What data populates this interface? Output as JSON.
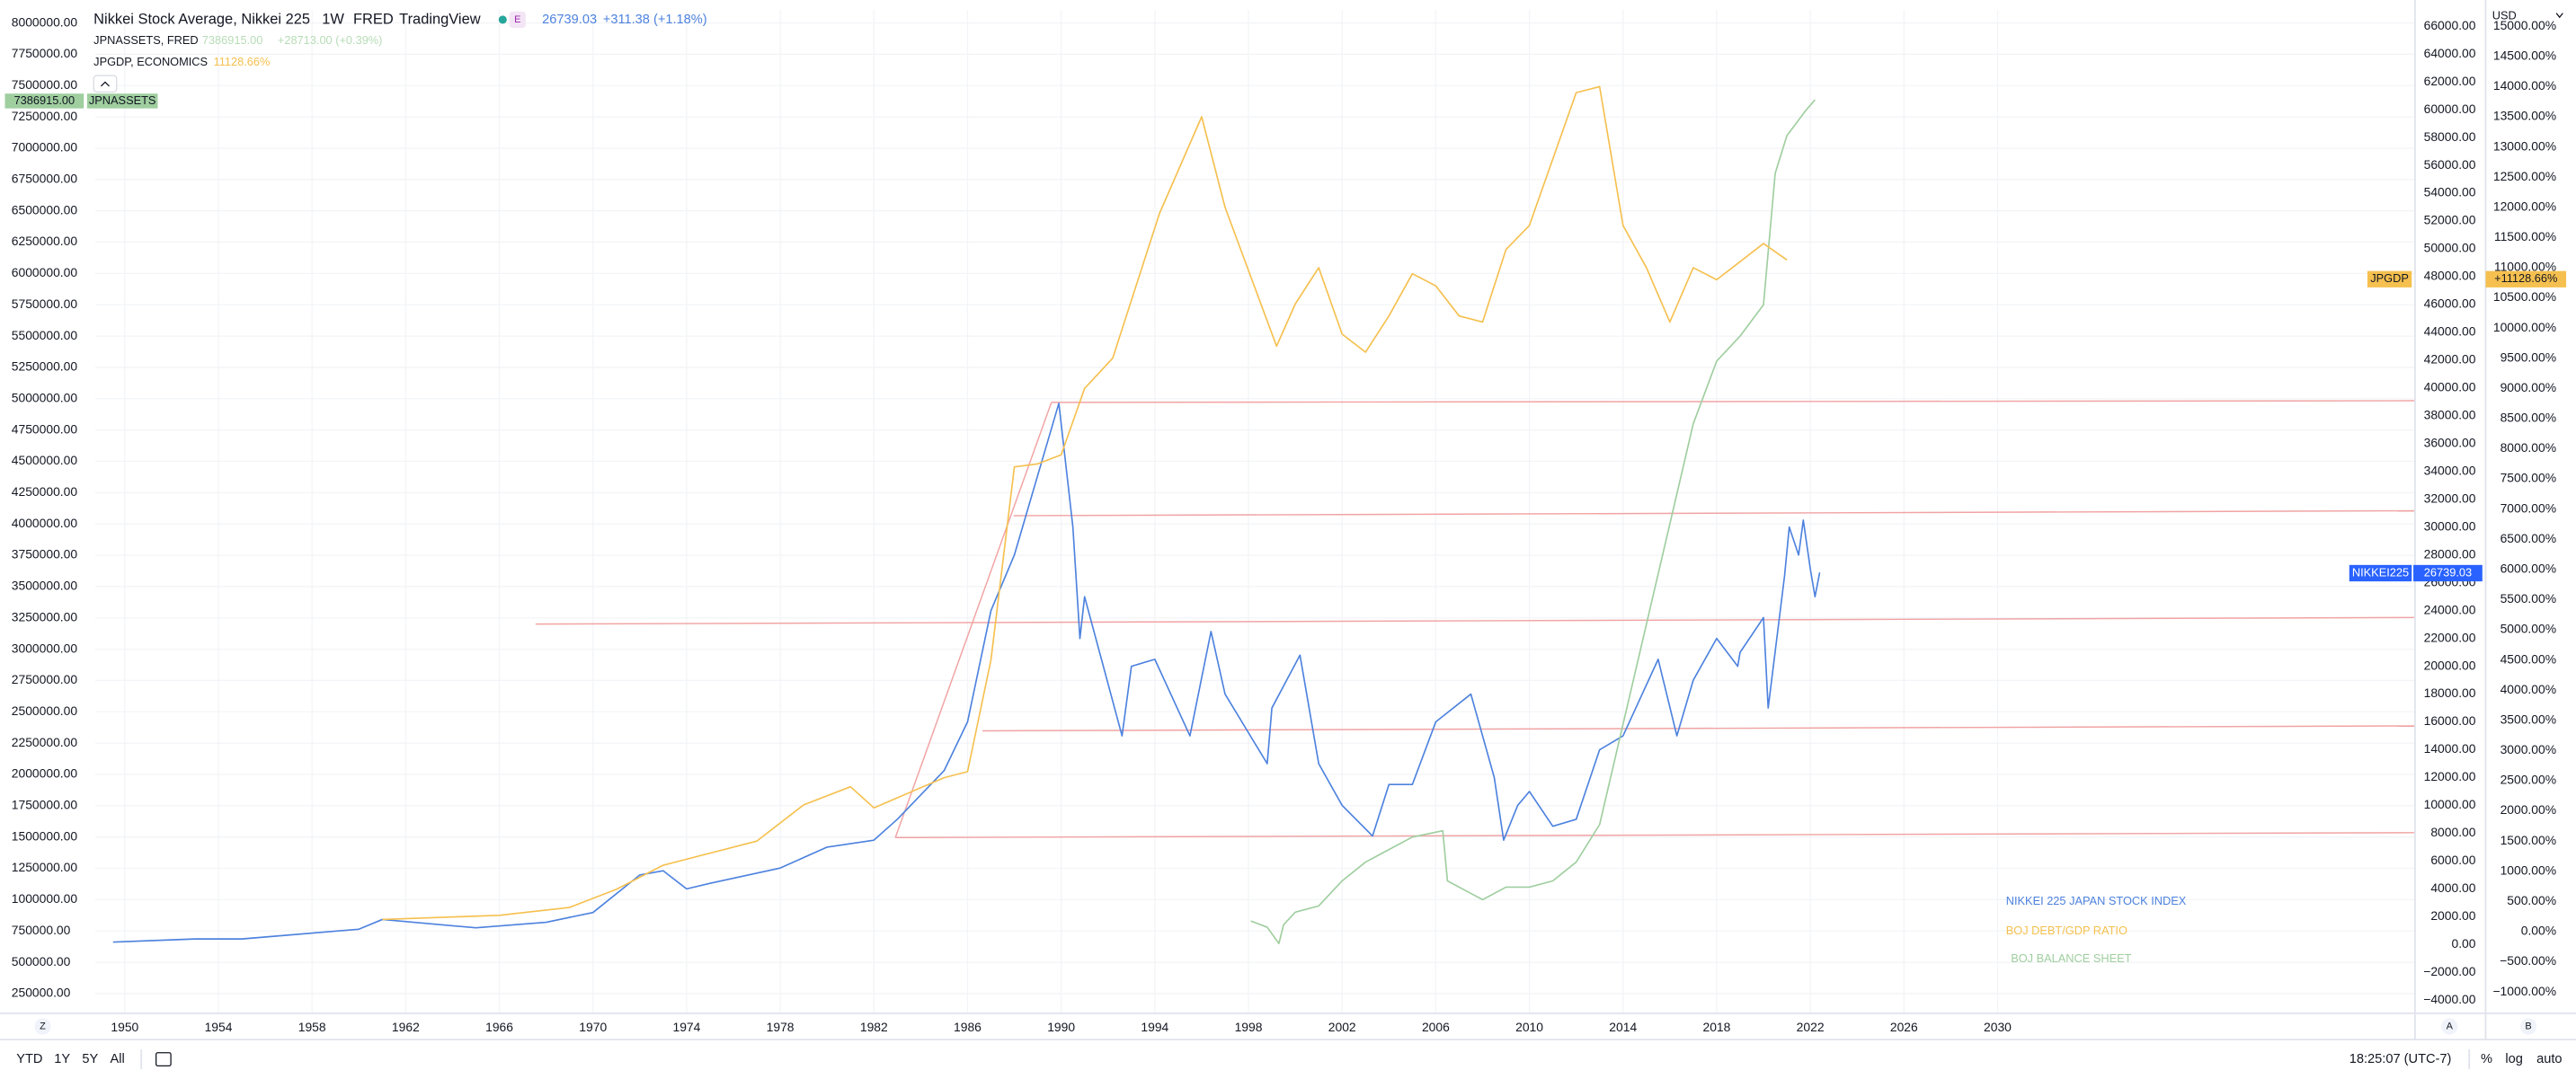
{
  "legend": {
    "symbol": "Nikkei Stock Average, Nikkei 225",
    "interval": "1W",
    "source": "FRED",
    "brand": "TradingView",
    "badge": "E",
    "last": "26739.03",
    "change": "+311.38 (+1.18%)",
    "series2": "JPNASSETS, FRED",
    "series2_last": "7386915.00",
    "series2_change": "+28713.00 (+0.39%)",
    "series3": "JPGDP, ECONOMICS",
    "series3_last": "11128.66%"
  },
  "price_labels": {
    "jpnassets_value": "7386915.00",
    "jpnassets_name": "JPNASSETS",
    "jpgdp_name": "JPGDP",
    "jpgdp_value": "+11128.66%",
    "nikkei_name": "NIKKEI225",
    "nikkei_value": "26739.03",
    "currency": "USD"
  },
  "toolbar": {
    "ranges": [
      "YTD",
      "1Y",
      "5Y",
      "All"
    ],
    "time": "18:25:07 (UTC-7)",
    "percent": "%",
    "log": "log",
    "auto": "auto",
    "z": "Z",
    "a": "A",
    "b": "B"
  },
  "chart_data": {
    "type": "line",
    "title": "Nikkei Stock Average, Nikkei 225",
    "grid": true,
    "xlim": [
      1948.74,
      2047.83
    ],
    "xticks": [
      1950,
      1954,
      1958,
      1962,
      1966,
      1970,
      1974,
      1978,
      1982,
      1986,
      1990,
      1994,
      1998,
      2002,
      2006,
      2010,
      2014,
      2018,
      2022,
      2026,
      2030
    ],
    "ylim": [
      92640,
      8104900
    ],
    "yticks": [
      {
        "value": 250000,
        "label": "250000.00"
      },
      {
        "value": 500000,
        "label": "500000.00"
      },
      {
        "value": 750000,
        "label": "750000.00"
      },
      {
        "value": 1000000,
        "label": "1000000.00"
      },
      {
        "value": 1250000,
        "label": "1250000.00"
      },
      {
        "value": 1500000,
        "label": "1500000.00"
      },
      {
        "value": 1750000,
        "label": "1750000.00"
      },
      {
        "value": 2000000,
        "label": "2000000.00"
      },
      {
        "value": 2250000,
        "label": "2250000.00"
      },
      {
        "value": 2500000,
        "label": "2500000.00"
      },
      {
        "value": 2750000,
        "label": "2750000.00"
      },
      {
        "value": 3000000,
        "label": "3000000.00"
      },
      {
        "value": 3250000,
        "label": "3250000.00"
      },
      {
        "value": 3500000,
        "label": "3500000.00"
      },
      {
        "value": 3750000,
        "label": "3750000.00"
      },
      {
        "value": 4000000,
        "label": "4000000.00"
      },
      {
        "value": 4250000,
        "label": "4250000.00"
      },
      {
        "value": 4500000,
        "label": "4500000.00"
      },
      {
        "value": 4750000,
        "label": "4750000.00"
      },
      {
        "value": 5000000,
        "label": "5000000.00"
      },
      {
        "value": 5250000,
        "label": "5250000.00"
      },
      {
        "value": 5500000,
        "label": "5500000.00"
      },
      {
        "value": 5750000,
        "label": "5750000.00"
      },
      {
        "value": 6000000,
        "label": "6000000.00"
      },
      {
        "value": 6250000,
        "label": "6250000.00"
      },
      {
        "value": 6500000,
        "label": "6500000.00"
      },
      {
        "value": 6750000,
        "label": "6750000.00"
      },
      {
        "value": 7000000,
        "label": "7000000.00"
      },
      {
        "value": 7250000,
        "label": "7250000.00"
      },
      {
        "value": 7500000,
        "label": "7500000.00"
      },
      {
        "value": 7750000,
        "label": "7750000.00"
      },
      {
        "value": 8000000,
        "label": "8000000.00"
      }
    ],
    "y2lim": [
      -4944,
      67181
    ],
    "y2ticks": [
      {
        "value": -4000,
        "label": "−4000.00"
      },
      {
        "value": -2000,
        "label": "−2000.00"
      },
      {
        "value": 0,
        "label": "0.00"
      },
      {
        "value": 2000,
        "label": "2000.00"
      },
      {
        "value": 4000,
        "label": "4000.00"
      },
      {
        "value": 6000,
        "label": "6000.00"
      },
      {
        "value": 8000,
        "label": "8000.00"
      },
      {
        "value": 10000,
        "label": "10000.00"
      },
      {
        "value": 12000,
        "label": "12000.00"
      },
      {
        "value": 14000,
        "label": "14000.00"
      },
      {
        "value": 16000,
        "label": "16000.00"
      },
      {
        "value": 18000,
        "label": "18000.00"
      },
      {
        "value": 20000,
        "label": "20000.00"
      },
      {
        "value": 22000,
        "label": "22000.00"
      },
      {
        "value": 24000,
        "label": "24000.00"
      },
      {
        "value": 26000,
        "label": "26000.00"
      },
      {
        "value": 28000,
        "label": "28000.00"
      },
      {
        "value": 30000,
        "label": "30000.00"
      },
      {
        "value": 32000,
        "label": "32000.00"
      },
      {
        "value": 34000,
        "label": "34000.00"
      },
      {
        "value": 36000,
        "label": "36000.00"
      },
      {
        "value": 38000,
        "label": "38000.00"
      },
      {
        "value": 40000,
        "label": "40000.00"
      },
      {
        "value": 42000,
        "label": "42000.00"
      },
      {
        "value": 44000,
        "label": "44000.00"
      },
      {
        "value": 46000,
        "label": "46000.00"
      },
      {
        "value": 48000,
        "label": "48000.00"
      },
      {
        "value": 50000,
        "label": "50000.00"
      },
      {
        "value": 52000,
        "label": "52000.00"
      },
      {
        "value": 54000,
        "label": "54000.00"
      },
      {
        "value": 56000,
        "label": "56000.00"
      },
      {
        "value": 58000,
        "label": "58000.00"
      },
      {
        "value": 60000,
        "label": "60000.00"
      },
      {
        "value": 62000,
        "label": "62000.00"
      },
      {
        "value": 64000,
        "label": "64000.00"
      },
      {
        "value": 66000,
        "label": "66000.00"
      }
    ],
    "y3lim": [
      -1354,
      15272
    ],
    "y3ticks": [
      {
        "value": -1000,
        "label": "−1000.00%"
      },
      {
        "value": -500,
        "label": "−500.00%"
      },
      {
        "value": 0,
        "label": "0.00%"
      },
      {
        "value": 500,
        "label": "500.00%"
      },
      {
        "value": 1000,
        "label": "1000.00%"
      },
      {
        "value": 1500,
        "label": "1500.00%"
      },
      {
        "value": 2000,
        "label": "2000.00%"
      },
      {
        "value": 2500,
        "label": "2500.00%"
      },
      {
        "value": 3000,
        "label": "3000.00%"
      },
      {
        "value": 3500,
        "label": "3500.00%"
      },
      {
        "value": 4000,
        "label": "4000.00%"
      },
      {
        "value": 4500,
        "label": "4500.00%"
      },
      {
        "value": 5000,
        "label": "5000.00%"
      },
      {
        "value": 5500,
        "label": "5500.00%"
      },
      {
        "value": 6000,
        "label": "6000.00%"
      },
      {
        "value": 6500,
        "label": "6500.00%"
      },
      {
        "value": 7000,
        "label": "7000.00%"
      },
      {
        "value": 7500,
        "label": "7500.00%"
      },
      {
        "value": 8000,
        "label": "8000.00%"
      },
      {
        "value": 8500,
        "label": "8500.00%"
      },
      {
        "value": 9000,
        "label": "9000.00%"
      },
      {
        "value": 9500,
        "label": "9500.00%"
      },
      {
        "value": 10000,
        "label": "10000.00%"
      },
      {
        "value": 10500,
        "label": "10500.00%"
      },
      {
        "value": 11000,
        "label": "11000.00%"
      },
      {
        "value": 11500,
        "label": "11500.00%"
      },
      {
        "value": 12000,
        "label": "12000.00%"
      },
      {
        "value": 12500,
        "label": "12500.00%"
      },
      {
        "value": 13000,
        "label": "13000.00%"
      },
      {
        "value": 13500,
        "label": "13500.00%"
      },
      {
        "value": 14000,
        "label": "14000.00%"
      },
      {
        "value": 14500,
        "label": "14500.00%"
      },
      {
        "value": 15000,
        "label": "15000.00%"
      }
    ],
    "series": [
      {
        "name": "NIKKEI 225 JAPAN STOCK INDEX",
        "color": "#4d82de",
        "axis": "y2",
        "x": [
          1949.5,
          1953,
          1955,
          1960,
          1961,
          1965,
          1968,
          1970,
          1972,
          1973,
          1974,
          1975,
          1978,
          1980,
          1982,
          1983,
          1985,
          1986,
          1987,
          1988,
          1989.9,
          1990.5,
          1990.8,
          1991,
          1992.6,
          1993,
          1994,
          1995.5,
          1996.4,
          1997,
          1998.8,
          1999,
          2000.2,
          2001,
          2002,
          2003.3,
          2004,
          2005,
          2006,
          2007.5,
          2008.5,
          2008.9,
          2009.5,
          2010,
          2011,
          2012,
          2013,
          2014,
          2015.5,
          2016.3,
          2017,
          2018,
          2018.9,
          2019,
          2020,
          2020.2,
          2020.9,
          2021.1,
          2021.5,
          2021.7,
          2022,
          2022.2,
          2022.4
        ],
        "values": [
          176,
          400,
          400,
          1100,
          1800,
          1200,
          1600,
          2300,
          5000,
          5300,
          4000,
          4400,
          5500,
          7000,
          7500,
          9000,
          12500,
          16000,
          24000,
          28000,
          38900,
          30000,
          22000,
          25000,
          15000,
          20000,
          20500,
          15000,
          22500,
          18000,
          13000,
          17000,
          20800,
          13000,
          10000,
          7800,
          11500,
          11500,
          16000,
          18000,
          12000,
          7500,
          10000,
          11000,
          8500,
          9000,
          14000,
          15000,
          20500,
          15000,
          19000,
          22000,
          20000,
          21000,
          23500,
          17000,
          26500,
          30000,
          28000,
          30500,
          27000,
          25000,
          26739
        ]
      },
      {
        "name": "BOJ BALANCE SHEET",
        "color": "#9fce9f",
        "axis": "y",
        "x": [
          1998.1,
          1998.8,
          1999.3,
          1999.5,
          2000,
          2001,
          2002,
          2003,
          2004,
          2005,
          2006.3,
          2006.5,
          2007.5,
          2008,
          2009,
          2010,
          2011,
          2012,
          2013,
          2014,
          2015,
          2016,
          2017,
          2018,
          2019,
          2020,
          2020.5,
          2021,
          2021.8,
          2022.2
        ],
        "values": [
          830000,
          780000,
          650000,
          800000,
          900000,
          950000,
          1150000,
          1300000,
          1400000,
          1500000,
          1550000,
          1150000,
          1050000,
          1000000,
          1100000,
          1100000,
          1150000,
          1300000,
          1600000,
          2400000,
          3200000,
          4000000,
          4800000,
          5300000,
          5500000,
          5750000,
          6800000,
          7100000,
          7300000,
          7386915
        ]
      },
      {
        "name": "BOJ DEBT/GDP RATIO",
        "color": "#f5c04f",
        "axis": "y3",
        "x": [
          1961,
          1966,
          1969,
          1971,
          1973,
          1977,
          1979,
          1981,
          1982,
          1985,
          1986,
          1987,
          1988,
          1989,
          1990,
          1991,
          1992.2,
          1994.2,
          1996,
          1997,
          1999.2,
          2000,
          2001,
          2002,
          2003,
          2004,
          2005,
          2006,
          2007,
          2008,
          2009,
          2010,
          2012,
          2013,
          2014,
          2015,
          2016,
          2017,
          2018,
          2020,
          2021
        ],
        "values": [
          200,
          270,
          400,
          700,
          1100,
          1500,
          2100,
          2400,
          2050,
          2550,
          2650,
          4500,
          7700,
          7750,
          7900,
          9000,
          9500,
          11900,
          13500,
          12000,
          9700,
          10400,
          11000,
          9900,
          9600,
          10200,
          10900,
          10700,
          10200,
          10100,
          11300,
          11700,
          13900,
          14000,
          11700,
          11000,
          10100,
          11000,
          10800,
          11400,
          11128.66
        ]
      }
    ]
  }
}
